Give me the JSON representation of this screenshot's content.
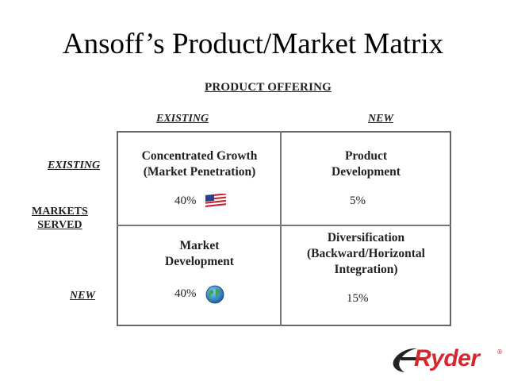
{
  "title": "Ansoff’s Product/Market Matrix",
  "axes": {
    "product_offering": "PRODUCT OFFERING",
    "col_existing": "EXISTING",
    "col_new": "NEW",
    "markets_served_line1": "MARKETS",
    "markets_served_line2": "SERVED",
    "row_existing": "EXISTING",
    "row_new": "NEW"
  },
  "cells": {
    "top_left": {
      "line1": "Concentrated Growth",
      "line2": "(Market Penetration)",
      "percent": "40%",
      "icon": "us-flag-icon"
    },
    "top_right": {
      "line1": "Product",
      "line2": "Development",
      "percent": "5%"
    },
    "bottom_left": {
      "line1": "Market",
      "line2": "Development",
      "percent": "40%",
      "icon": "globe-icon"
    },
    "bottom_right": {
      "line1": "Diversification",
      "line2": "(Backward/Horizontal",
      "line3": "Integration)",
      "percent": "15%"
    }
  },
  "logo": {
    "text": "Ryder",
    "colors": {
      "brand_red": "#d7262e",
      "swoosh": "#222222"
    }
  }
}
